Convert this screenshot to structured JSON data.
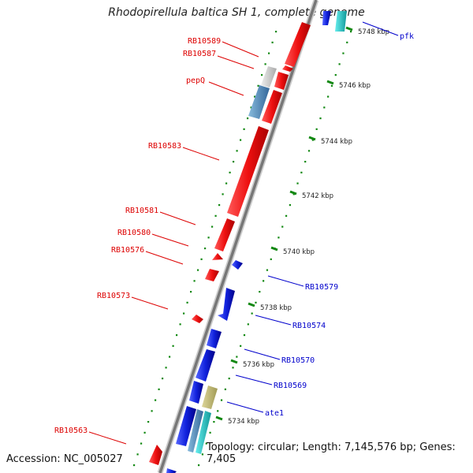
{
  "title": "Rhodopirellula baltica SH 1, complete genome",
  "footer": {
    "accession": "Accession: NC_005027",
    "topology": "Topology: circular; Length: 7,145,576 bp; Genes: 7,405"
  },
  "colors": {
    "forward_gene": "#ee1111",
    "reverse_gene": "#1122dd",
    "tick": "#118811",
    "label_forward": "#dd0000",
    "label_reverse": "#0000cc",
    "backbone": "#777777"
  },
  "scale_labels": [
    {
      "text": "5748 kbp"
    },
    {
      "text": "5746 kbp"
    },
    {
      "text": "5744 kbp"
    },
    {
      "text": "5742 kbp"
    },
    {
      "text": "5740 kbp"
    },
    {
      "text": "5738 kbp"
    },
    {
      "text": "5736 kbp"
    },
    {
      "text": "5734 kbp"
    }
  ],
  "forward_gene_labels": [
    "RB10589",
    "RB10587",
    "pepQ",
    "RB10583",
    "RB10581",
    "RB10580",
    "RB10576",
    "RB10573",
    "RB10563"
  ],
  "reverse_gene_labels": [
    "pfk",
    "RB10579",
    "RB10574",
    "RB10570",
    "RB10569",
    "ate1"
  ]
}
